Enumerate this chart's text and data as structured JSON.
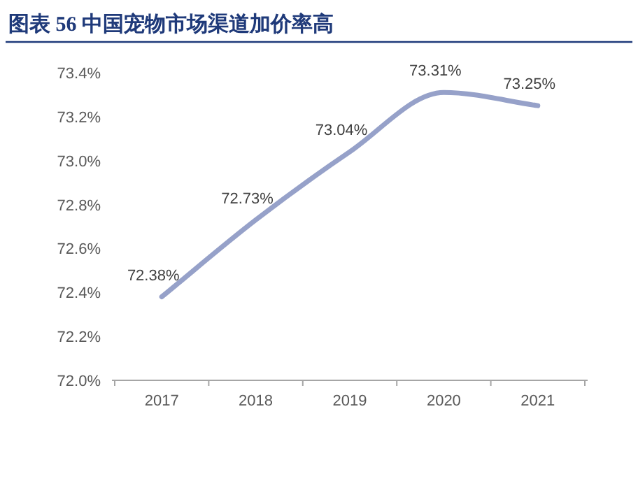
{
  "chart_data": {
    "type": "line",
    "title": "图表 56  中国宠物市场渠道加价率高",
    "categories": [
      "2017",
      "2018",
      "2019",
      "2020",
      "2021"
    ],
    "series": [
      {
        "color": "#96a1c9",
        "values": [
          72.38,
          72.73,
          73.04,
          73.31,
          73.25
        ],
        "value_labels": [
          "72.38%",
          "72.73%",
          "73.04%",
          "73.31%",
          "73.25%"
        ]
      }
    ],
    "ylim": [
      72.0,
      73.4
    ],
    "yticks": [
      {
        "value": 72.0,
        "label": "72.0%"
      },
      {
        "value": 72.2,
        "label": "72.2%"
      },
      {
        "value": 72.4,
        "label": "72.4%"
      },
      {
        "value": 72.6,
        "label": "72.6%"
      },
      {
        "value": 72.8,
        "label": "72.8%"
      },
      {
        "value": 73.0,
        "label": "73.0%"
      },
      {
        "value": 73.2,
        "label": "73.2%"
      },
      {
        "value": 73.4,
        "label": "73.4%"
      }
    ],
    "grid": false,
    "marker": "none",
    "line_style": "solid"
  }
}
